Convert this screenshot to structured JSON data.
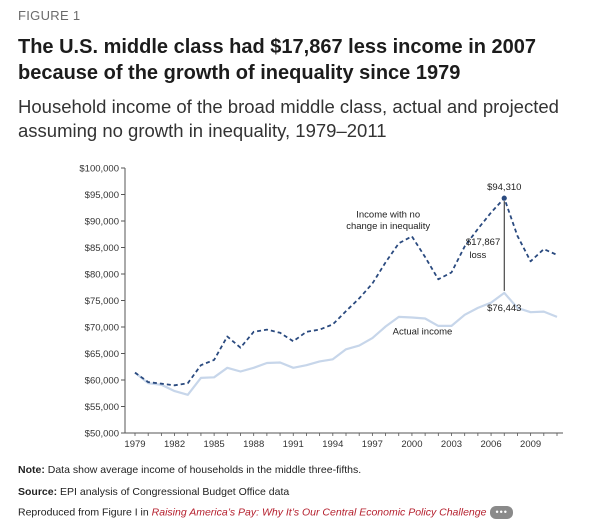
{
  "figure_label": "FIGURE 1",
  "title": "The U.S. middle class had $17,867 less income in 2007 because of the growth of inequality since 1979",
  "subtitle": "Household income of the broad middle class, actual and projected assuming no growth in inequality, 1979–2011",
  "chart_data": {
    "type": "line",
    "ylim": [
      50000,
      100000
    ],
    "xlim": [
      1979,
      2011
    ],
    "y_ticks": [
      50000,
      55000,
      60000,
      65000,
      70000,
      75000,
      80000,
      85000,
      90000,
      95000,
      100000
    ],
    "y_tick_labels": [
      "$50,000",
      "$55,000",
      "$60,000",
      "$65,000",
      "$70,000",
      "$75,000",
      "$80,000",
      "$85,000",
      "$90,000",
      "$95,000",
      "$100,000"
    ],
    "x_ticks": [
      1979,
      1982,
      1985,
      1988,
      1991,
      1994,
      1997,
      2000,
      2003,
      2006,
      2009
    ],
    "x_tick_labels": [
      "1979",
      "1982",
      "1985",
      "1988",
      "1991",
      "1994",
      "1997",
      "2000",
      "2003",
      "2006",
      "2009"
    ],
    "grid": false,
    "series": [
      {
        "name": "Income with no change in inequality",
        "style": "dashed",
        "color": "#2a4a7f",
        "x": [
          1979,
          1980,
          1981,
          1982,
          1983,
          1984,
          1985,
          1986,
          1987,
          1988,
          1989,
          1990,
          1991,
          1992,
          1993,
          1994,
          1995,
          1996,
          1997,
          1998,
          1999,
          2000,
          2001,
          2002,
          2003,
          2004,
          2005,
          2006,
          2007,
          2008,
          2009,
          2010,
          2011
        ],
        "y": [
          61400,
          59600,
          59300,
          59000,
          59400,
          62800,
          63800,
          68200,
          66100,
          69100,
          69500,
          68900,
          67300,
          69100,
          69500,
          70500,
          73000,
          75400,
          78200,
          82200,
          85800,
          87100,
          83200,
          79000,
          80300,
          85200,
          88500,
          91600,
          94310,
          87200,
          82400,
          84700,
          83600
        ]
      },
      {
        "name": "Actual income",
        "style": "solid",
        "color": "#c7d6ea",
        "x": [
          1979,
          1980,
          1981,
          1982,
          1983,
          1984,
          1985,
          1986,
          1987,
          1988,
          1989,
          1990,
          1991,
          1992,
          1993,
          1994,
          1995,
          1996,
          1997,
          1998,
          1999,
          2000,
          2001,
          2002,
          2003,
          2004,
          2005,
          2006,
          2007,
          2008,
          2009,
          2010,
          2011
        ],
        "y": [
          61400,
          59400,
          59100,
          57900,
          57200,
          60400,
          60500,
          62300,
          61600,
          62300,
          63200,
          63300,
          62300,
          62800,
          63500,
          63900,
          65800,
          66500,
          67900,
          70100,
          71900,
          71800,
          71600,
          70200,
          70200,
          72300,
          73600,
          74600,
          76443,
          73600,
          72800,
          72900,
          71900
        ]
      }
    ],
    "annotations": {
      "peak_value": "$94,310",
      "actual_value": "$76,443",
      "gap_value": "$17,867",
      "gap_label": "loss",
      "projected_label": [
        "Income with no",
        "change in inequality"
      ],
      "actual_label": "Actual income"
    }
  },
  "footer": {
    "note_label": "Note:",
    "note_text": " Data show average income of households in the middle three-fifths.",
    "source_label": "Source:",
    "source_text": " EPI analysis of Congressional Budget Office data",
    "reproduced_text": "Reproduced from Figure I in ",
    "reproduced_link": "Raising America’s Pay: Why It’s Our Central Economic Policy Challenge",
    "more_label": "•••"
  }
}
